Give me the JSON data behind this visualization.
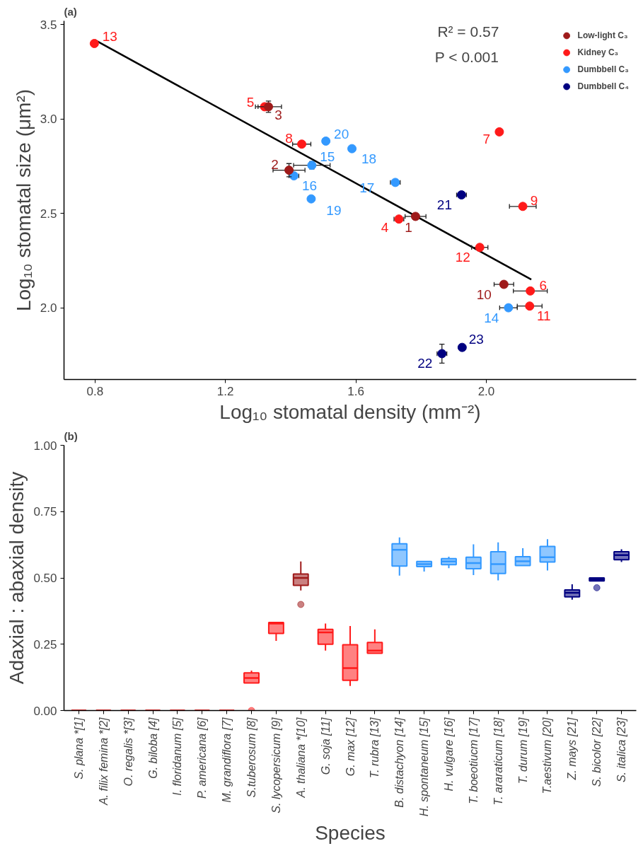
{
  "chart_data": [
    {
      "type": "scatter",
      "title": "(a)",
      "xlabel": "Log₁₀ stomatal density (mm⁻²)",
      "ylabel": "Log₁₀ stomatal size (μm²)",
      "xlim": [
        0.705,
        2.46
      ],
      "ylim": [
        1.62,
        3.52
      ],
      "xticks": [
        {
          "value": 0.8,
          "label": "0.8"
        },
        {
          "value": 1.2,
          "label": "1.2"
        },
        {
          "value": 1.6,
          "label": "1.6"
        },
        {
          "value": 2.0,
          "label": "2.0"
        }
      ],
      "yticks": [
        {
          "value": 2.0,
          "label": "2.0"
        },
        {
          "value": 2.5,
          "label": "2.5"
        },
        {
          "value": 3.0,
          "label": "3.0"
        },
        {
          "value": 3.5,
          "label": "3.5"
        }
      ],
      "grid": false,
      "legend": "top right",
      "marker": "circle",
      "annotations": [
        "R² = 0.57",
        "P < 0.001",
        {
          "text": "1",
          "x": 1.783,
          "y": 2.484
        },
        {
          "text": "2",
          "x": 1.395,
          "y": 2.729
        },
        {
          "text": "3",
          "x": 1.332,
          "y": 3.065
        },
        {
          "text": "4",
          "x": 1.732,
          "y": 2.47
        },
        {
          "text": "5",
          "x": 1.32,
          "y": 3.065
        },
        {
          "text": "6",
          "x": 2.135,
          "y": 2.089
        },
        {
          "text": "7",
          "x": 2.04,
          "y": 2.932
        },
        {
          "text": "8",
          "x": 1.434,
          "y": 2.867
        },
        {
          "text": "9",
          "x": 2.112,
          "y": 2.537
        },
        {
          "text": "10",
          "x": 2.054,
          "y": 2.124
        },
        {
          "text": "11",
          "x": 2.133,
          "y": 2.009
        },
        {
          "text": "12",
          "x": 1.98,
          "y": 2.32
        },
        {
          "text": "13",
          "x": 0.798,
          "y": 3.4
        },
        {
          "text": "14",
          "x": 2.068,
          "y": 2.0
        },
        {
          "text": "15",
          "x": 1.465,
          "y": 2.755
        },
        {
          "text": "16",
          "x": 1.41,
          "y": 2.699
        },
        {
          "text": "17",
          "x": 1.721,
          "y": 2.664
        },
        {
          "text": "18",
          "x": 1.588,
          "y": 2.843
        },
        {
          "text": "19",
          "x": 1.463,
          "y": 2.577
        },
        {
          "text": "20",
          "x": 1.508,
          "y": 2.883
        },
        {
          "text": "21",
          "x": 1.924,
          "y": 2.598
        },
        {
          "text": "22",
          "x": 1.864,
          "y": 1.757
        },
        {
          "text": "23",
          "x": 1.926,
          "y": 1.79
        }
      ],
      "series": [
        {
          "name": "Low-light C₃",
          "color": "#9e1a1a",
          "x": [
            1.783,
            1.395,
            1.332,
            2.054
          ],
          "values": [
            2.484,
            2.729,
            3.065,
            2.124
          ],
          "xerrors": [
            0.032,
            0.049,
            0.04,
            0.03
          ],
          "errors": [
            null,
            0.035,
            0.03,
            null
          ]
        },
        {
          "name": "Kidney C₃",
          "color": "#ff1a1a",
          "x": [
            1.732,
            1.32,
            2.135,
            2.04,
            1.434,
            2.112,
            2.133,
            1.98,
            0.798
          ],
          "values": [
            2.47,
            3.065,
            2.089,
            2.932,
            2.867,
            2.537,
            2.009,
            2.32,
            3.4
          ],
          "xerrors": [
            0.015,
            0.02,
            0.052,
            null,
            0.028,
            0.041,
            0.038,
            0.025,
            null
          ]
        },
        {
          "name": "Dumbbell C₃",
          "color": "#3399ff",
          "x": [
            2.068,
            1.465,
            1.41,
            1.721,
            1.588,
            1.463,
            1.508
          ],
          "values": [
            2.0,
            2.755,
            2.699,
            2.664,
            2.843,
            2.577,
            2.883
          ],
          "xerrors": [
            0.027,
            0.056,
            0.015,
            0.015,
            null,
            null,
            null
          ],
          "errors": [
            null,
            0.02,
            null,
            null,
            null,
            null,
            null
          ]
        },
        {
          "name": "Dumbbell C₄",
          "color": "#000080",
          "x": [
            1.924,
            1.864,
            1.926
          ],
          "values": [
            2.598,
            1.757,
            1.79
          ],
          "xerrors": [
            0.015,
            0.015,
            null
          ],
          "errors": [
            null,
            0.05,
            null
          ]
        },
        {
          "type": "line",
          "color": "#000000",
          "marker": "none",
          "x": [
            0.8,
            2.138
          ],
          "values": [
            3.418,
            2.15
          ]
        }
      ]
    },
    {
      "type": "box",
      "title": "(b)",
      "xlabel": "Species",
      "ylabel": "Adaxial : abaxial density",
      "categories": [
        "S. plana *[1]",
        "A. filix femina *[2]",
        "O. regalis *[3]",
        "G. biloba [4]",
        "I. floridanum [5]",
        "P. americana [6]",
        "M. grandiflora [7]",
        "S.tuberosum [8]",
        "S. lycopersicum [9]",
        "A. thaliana *[10]",
        "G. soja [11]",
        "G. max [12]",
        "T. rubra [13]",
        "B. distachyon [14]",
        "H. spontaneum [15]",
        "H. vulgare [16]",
        "T. boeotiucm [17]",
        "T. araraticum [18]",
        "T. durum [19]",
        "T.aestivum [20]",
        "Z. mays [21]",
        "S. bicolor [22]",
        "S. italica [23]"
      ],
      "ylim": [
        0,
        1.0
      ],
      "yticks": [
        {
          "value": 0,
          "label": "0.00"
        },
        {
          "value": 0.25,
          "label": "0.25"
        },
        {
          "value": 0.5,
          "label": "0.50"
        },
        {
          "value": 0.75,
          "label": "0.75"
        },
        {
          "value": 1.0,
          "label": "1.00"
        }
      ],
      "grid": false,
      "colors": [
        "#ff1a1a",
        "#ff1a1a",
        "#ff1a1a",
        "#ff1a1a",
        "#ff1a1a",
        "#ff1a1a",
        "#ff1a1a",
        "#ff1a1a",
        "#ff1a1a",
        "#9e1a1a",
        "#ff1a1a",
        "#ff1a1a",
        "#ff1a1a",
        "#3399ff",
        "#3399ff",
        "#3399ff",
        "#3399ff",
        "#3399ff",
        "#3399ff",
        "#3399ff",
        "#000080",
        "#000080",
        "#000080"
      ],
      "boxes": [
        {
          "low": 0,
          "q1": 0,
          "median": 0,
          "q3": 0,
          "high": 0
        },
        {
          "low": 0,
          "q1": 0,
          "median": 0,
          "q3": 0,
          "high": 0
        },
        {
          "low": 0,
          "q1": 0,
          "median": 0,
          "q3": 0,
          "high": 0
        },
        {
          "low": 0,
          "q1": 0,
          "median": 0,
          "q3": 0,
          "high": 0
        },
        {
          "low": 0,
          "q1": 0,
          "median": 0,
          "q3": 0,
          "high": 0
        },
        {
          "low": 0,
          "q1": 0,
          "median": 0,
          "q3": 0,
          "high": 0
        },
        {
          "low": 0,
          "q1": 0,
          "median": 0,
          "q3": 0,
          "high": 0
        },
        {
          "low": 0.104,
          "q1": 0.104,
          "median": 0.123,
          "q3": 0.142,
          "high": 0.151,
          "outliers": [
            0.0
          ]
        },
        {
          "low": 0.263,
          "q1": 0.291,
          "median": 0.328,
          "q3": 0.332,
          "high": 0.332
        },
        {
          "low": 0.453,
          "q1": 0.472,
          "median": 0.5,
          "q3": 0.515,
          "high": 0.562,
          "outliers": [
            0.4
          ]
        },
        {
          "low": 0.226,
          "q1": 0.25,
          "median": 0.295,
          "q3": 0.306,
          "high": 0.328
        },
        {
          "low": 0.093,
          "q1": 0.114,
          "median": 0.16,
          "q3": 0.248,
          "high": 0.319
        },
        {
          "low": 0.216,
          "q1": 0.216,
          "median": 0.226,
          "q3": 0.257,
          "high": 0.306
        },
        {
          "low": 0.509,
          "q1": 0.545,
          "median": 0.606,
          "q3": 0.629,
          "high": 0.653
        },
        {
          "low": 0.524,
          "q1": 0.543,
          "median": 0.552,
          "q3": 0.562,
          "high": 0.562
        },
        {
          "low": 0.537,
          "q1": 0.55,
          "median": 0.562,
          "q3": 0.573,
          "high": 0.58
        },
        {
          "low": 0.511,
          "q1": 0.535,
          "median": 0.556,
          "q3": 0.578,
          "high": 0.627
        },
        {
          "low": 0.491,
          "q1": 0.517,
          "median": 0.552,
          "q3": 0.599,
          "high": 0.634
        },
        {
          "low": 0.547,
          "q1": 0.547,
          "median": 0.563,
          "q3": 0.58,
          "high": 0.612
        },
        {
          "low": 0.528,
          "q1": 0.56,
          "median": 0.578,
          "q3": 0.619,
          "high": 0.646
        },
        {
          "low": 0.418,
          "q1": 0.429,
          "median": 0.444,
          "q3": 0.455,
          "high": 0.476
        },
        {
          "low": 0.489,
          "q1": 0.489,
          "median": 0.494,
          "q3": 0.5,
          "high": 0.5,
          "outliers": [
            0.463
          ]
        },
        {
          "low": 0.56,
          "q1": 0.569,
          "median": 0.586,
          "q3": 0.599,
          "high": 0.608
        }
      ]
    }
  ]
}
